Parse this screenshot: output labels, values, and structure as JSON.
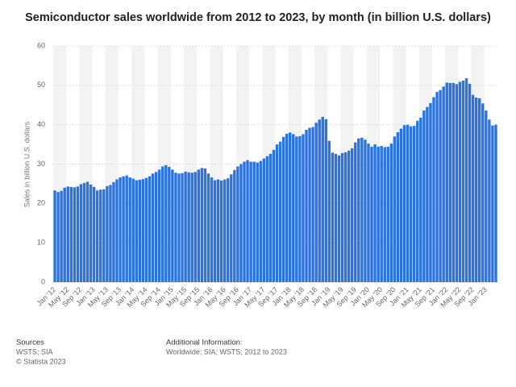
{
  "chart_data": {
    "type": "bar",
    "title": "Semiconductor sales worldwide from 2012 to 2023, by month (in billion U.S. dollars)",
    "y_label": "Sales in billion U.S. dollars",
    "categories": [
      "Jan '12",
      null,
      null,
      null,
      "May '12",
      null,
      null,
      null,
      "Sep '12",
      null,
      null,
      null,
      "Jan '13",
      null,
      null,
      null,
      "May '13",
      null,
      null,
      null,
      "Sep '13",
      null,
      null,
      null,
      "Jan '14",
      null,
      null,
      null,
      "May '14",
      null,
      null,
      null,
      "Sep '14",
      null,
      null,
      null,
      "Jan '15",
      null,
      null,
      null,
      "May '15",
      null,
      null,
      null,
      "Sep '15",
      null,
      null,
      null,
      "Jan '16",
      null,
      null,
      null,
      "May '16",
      null,
      null,
      null,
      "Sep '16",
      null,
      null,
      null,
      "Jan '17",
      null,
      null,
      null,
      "May '17",
      null,
      null,
      null,
      "Sep '17",
      null,
      null,
      null,
      "Jan '18",
      null,
      null,
      null,
      "May '18",
      null,
      null,
      null,
      "Sep '18",
      null,
      null,
      null,
      "Jan '19",
      null,
      null,
      null,
      "May '19",
      null,
      null,
      null,
      "Sep '19",
      null,
      null,
      null,
      "Jan '20",
      null,
      null,
      null,
      "May '20",
      null,
      null,
      null,
      "Sep '20",
      null,
      null,
      null,
      "Jan '21",
      null,
      null,
      null,
      "May '21",
      null,
      null,
      null,
      "Sep '21",
      null,
      null,
      null,
      "Jan '22",
      null,
      null,
      null,
      "May '22",
      null,
      null,
      null,
      "Sep '22",
      null,
      null,
      null,
      "Jan '23",
      null,
      null,
      null
    ],
    "values": [
      23.3,
      22.9,
      23.2,
      24.0,
      24.3,
      24.2,
      24.1,
      24.3,
      24.9,
      25.2,
      25.5,
      24.8,
      24.2,
      23.3,
      23.5,
      23.6,
      24.4,
      24.7,
      25.4,
      26.1,
      26.6,
      26.9,
      27.1,
      26.6,
      26.3,
      25.9,
      26.0,
      26.2,
      26.5,
      26.9,
      27.6,
      28.0,
      28.6,
      29.4,
      29.7,
      29.3,
      28.6,
      27.8,
      27.6,
      27.7,
      28.1,
      27.9,
      27.8,
      28.0,
      28.6,
      29.0,
      28.9,
      27.6,
      26.6,
      25.9,
      26.1,
      25.8,
      26.1,
      26.4,
      27.4,
      28.5,
      29.4,
      30.0,
      30.6,
      31.0,
      30.6,
      30.6,
      30.4,
      30.8,
      31.4,
      32.0,
      32.6,
      33.6,
      35.0,
      35.7,
      36.9,
      37.7,
      38.0,
      37.6,
      37.0,
      37.1,
      37.6,
      38.7,
      39.2,
      39.4,
      40.5,
      41.3,
      42.0,
      41.4,
      35.9,
      32.9,
      32.6,
      32.2,
      32.8,
      33.0,
      33.4,
      34.0,
      35.5,
      36.5,
      36.7,
      36.2,
      35.2,
      34.4,
      35.0,
      34.4,
      34.6,
      34.3,
      34.4,
      35.2,
      37.0,
      38.1,
      39.0,
      39.9,
      40.0,
      39.6,
      39.7,
      41.0,
      41.8,
      43.6,
      44.5,
      45.5,
      47.0,
      48.3,
      48.8,
      49.7,
      50.7,
      50.6,
      50.6,
      50.3,
      50.9,
      51.2,
      51.8,
      50.4,
      47.6,
      46.9,
      46.7,
      45.4,
      43.6,
      41.3,
      39.8,
      40.0
    ],
    "color": "#2b74df",
    "ylim": [
      0,
      60
    ],
    "yticks": [
      0,
      10,
      20,
      30,
      40,
      50,
      60
    ],
    "grid": true
  },
  "footer": {
    "sources_title": "Sources",
    "sources": "WSTS; SIA",
    "copyright": "© Statista 2023",
    "info_title": "Additional Information:",
    "info": "Worldwide; SIA; WSTS; 2012 to 2023"
  }
}
